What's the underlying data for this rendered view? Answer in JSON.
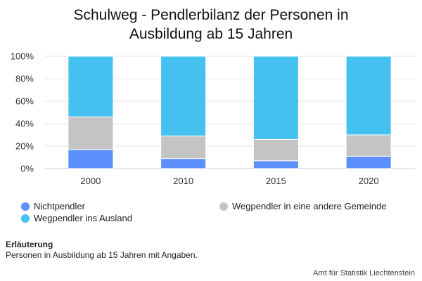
{
  "chart_data": {
    "type": "bar",
    "stacked": true,
    "title_lines": [
      "Schulweg - Pendlerbilanz der Personen in",
      "Ausbildung ab 15 Jahren"
    ],
    "categories": [
      "2000",
      "2010",
      "2015",
      "2020"
    ],
    "ylim": [
      0,
      100
    ],
    "yticks": [
      "0%",
      "20%",
      "40%",
      "60%",
      "80%",
      "100%"
    ],
    "grid": true,
    "legend_position": "bottom",
    "series": [
      {
        "name": "Nichtpendler",
        "color": "#5b8ff9",
        "values": [
          17,
          9,
          7,
          11
        ]
      },
      {
        "name": "Wegpendler in eine andere Gemeinde",
        "color": "#c4c4c4",
        "values": [
          29,
          20,
          19,
          19
        ]
      },
      {
        "name": "Wegpendler ins Ausland",
        "color": "#45c1f0",
        "values": [
          54,
          71,
          74,
          70
        ]
      }
    ]
  },
  "legend": {
    "nichtpendler": "Nichtpendler",
    "ausland": "Wegpendler ins Ausland",
    "gemeinde": "Wegpendler in eine andere Gemeinde"
  },
  "note": {
    "title": "Erläuterung",
    "text": "Personen in Ausbildung ab 15 Jahren mit Angaben."
  },
  "source": "Amt für Statistik Liechtenstein"
}
